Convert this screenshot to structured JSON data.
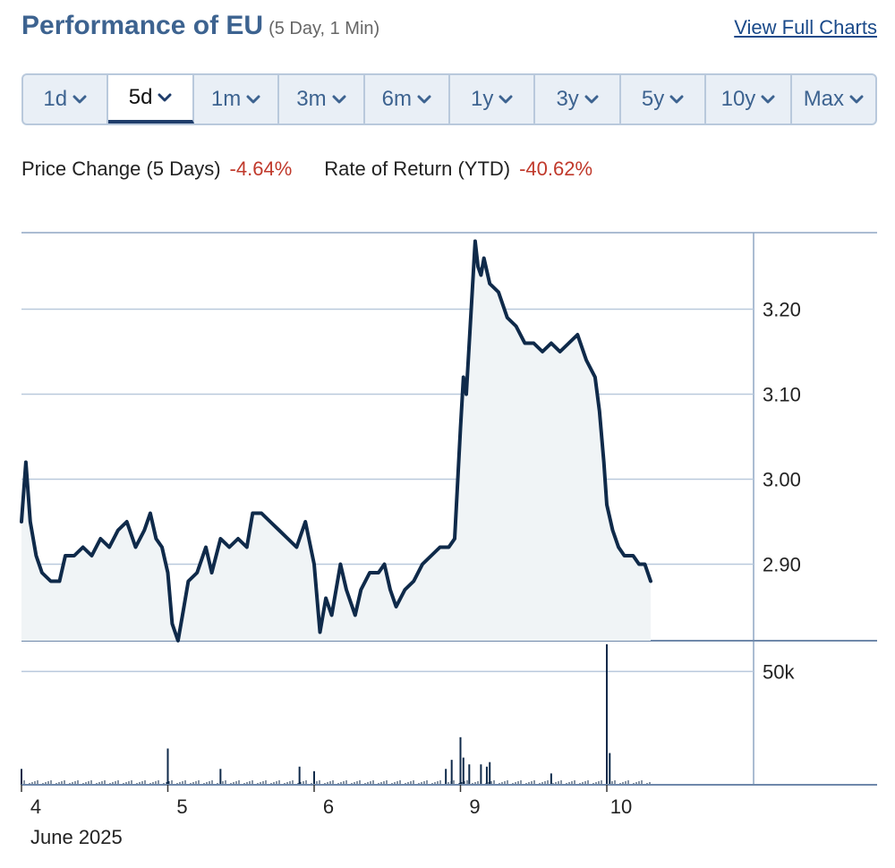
{
  "header": {
    "title": "Performance of EU",
    "subtitle": "(5 Day, 1 Min)",
    "view_full_label": "View Full Charts"
  },
  "tabs": [
    {
      "label": "1d",
      "active": false
    },
    {
      "label": "5d",
      "active": true
    },
    {
      "label": "1m",
      "active": false
    },
    {
      "label": "3m",
      "active": false
    },
    {
      "label": "6m",
      "active": false
    },
    {
      "label": "1y",
      "active": false
    },
    {
      "label": "3y",
      "active": false
    },
    {
      "label": "5y",
      "active": false
    },
    {
      "label": "10y",
      "active": false
    },
    {
      "label": "Max",
      "active": false
    }
  ],
  "stats": {
    "price_change_label": "Price Change (5 Days)",
    "price_change_value": "-4.64%",
    "ror_label": "Rate of Return (YTD)",
    "ror_value": "-40.62%"
  },
  "colors": {
    "accent": "#3d6390",
    "line": "#0f2a4a",
    "area_fill": "#f0f4f6",
    "negative": "#c0392b",
    "grid": "#b9c9dc"
  },
  "chart_data": {
    "type": "area",
    "title": "",
    "xlabel": "June 2025",
    "ylabel": "",
    "price": {
      "ylim": [
        2.81,
        3.29
      ],
      "yticks": [
        2.9,
        3.0,
        3.1,
        3.2
      ],
      "ytick_labels": [
        "2.90",
        "3.00",
        "3.10",
        "3.20"
      ],
      "x_sessions": [
        4,
        5,
        6,
        9,
        10
      ],
      "x_tick_labels": [
        "4",
        "5",
        "6",
        "9",
        "10"
      ],
      "points": [
        [
          0.0,
          2.95
        ],
        [
          0.03,
          3.02
        ],
        [
          0.06,
          2.95
        ],
        [
          0.1,
          2.91
        ],
        [
          0.14,
          2.89
        ],
        [
          0.2,
          2.88
        ],
        [
          0.26,
          2.88
        ],
        [
          0.3,
          2.91
        ],
        [
          0.36,
          2.91
        ],
        [
          0.42,
          2.92
        ],
        [
          0.48,
          2.91
        ],
        [
          0.54,
          2.93
        ],
        [
          0.6,
          2.92
        ],
        [
          0.66,
          2.94
        ],
        [
          0.72,
          2.95
        ],
        [
          0.78,
          2.92
        ],
        [
          0.84,
          2.94
        ],
        [
          0.88,
          2.96
        ],
        [
          0.92,
          2.93
        ],
        [
          0.96,
          2.92
        ],
        [
          1.0,
          2.89
        ],
        [
          1.03,
          2.83
        ],
        [
          1.07,
          2.81
        ],
        [
          1.1,
          2.84
        ],
        [
          1.14,
          2.88
        ],
        [
          1.2,
          2.89
        ],
        [
          1.26,
          2.92
        ],
        [
          1.3,
          2.89
        ],
        [
          1.36,
          2.93
        ],
        [
          1.42,
          2.92
        ],
        [
          1.48,
          2.93
        ],
        [
          1.54,
          2.92
        ],
        [
          1.58,
          2.96
        ],
        [
          1.64,
          2.96
        ],
        [
          1.7,
          2.95
        ],
        [
          1.76,
          2.94
        ],
        [
          1.82,
          2.93
        ],
        [
          1.88,
          2.92
        ],
        [
          1.94,
          2.95
        ],
        [
          2.0,
          2.9
        ],
        [
          2.04,
          2.82
        ],
        [
          2.08,
          2.86
        ],
        [
          2.12,
          2.84
        ],
        [
          2.18,
          2.9
        ],
        [
          2.22,
          2.87
        ],
        [
          2.28,
          2.84
        ],
        [
          2.32,
          2.87
        ],
        [
          2.38,
          2.89
        ],
        [
          2.44,
          2.89
        ],
        [
          2.48,
          2.9
        ],
        [
          2.52,
          2.87
        ],
        [
          2.56,
          2.85
        ],
        [
          2.62,
          2.87
        ],
        [
          2.68,
          2.88
        ],
        [
          2.74,
          2.9
        ],
        [
          2.8,
          2.91
        ],
        [
          2.86,
          2.92
        ],
        [
          2.92,
          2.92
        ],
        [
          2.96,
          2.93
        ],
        [
          3.0,
          3.06
        ],
        [
          3.02,
          3.12
        ],
        [
          3.04,
          3.1
        ],
        [
          3.06,
          3.16
        ],
        [
          3.08,
          3.22
        ],
        [
          3.1,
          3.28
        ],
        [
          3.12,
          3.25
        ],
        [
          3.14,
          3.24
        ],
        [
          3.16,
          3.26
        ],
        [
          3.2,
          3.23
        ],
        [
          3.26,
          3.22
        ],
        [
          3.32,
          3.19
        ],
        [
          3.38,
          3.18
        ],
        [
          3.44,
          3.16
        ],
        [
          3.5,
          3.16
        ],
        [
          3.56,
          3.15
        ],
        [
          3.62,
          3.16
        ],
        [
          3.68,
          3.15
        ],
        [
          3.74,
          3.16
        ],
        [
          3.8,
          3.17
        ],
        [
          3.86,
          3.14
        ],
        [
          3.92,
          3.12
        ],
        [
          3.95,
          3.08
        ],
        [
          3.98,
          3.02
        ],
        [
          4.0,
          2.97
        ],
        [
          4.04,
          2.94
        ],
        [
          4.08,
          2.92
        ],
        [
          4.12,
          2.91
        ],
        [
          4.18,
          2.91
        ],
        [
          4.22,
          2.9
        ],
        [
          4.26,
          2.9
        ],
        [
          4.3,
          2.88
        ]
      ]
    },
    "volume": {
      "ylim": [
        0,
        62000
      ],
      "yticks": [
        50000
      ],
      "ytick_labels": [
        "50k"
      ],
      "spikes": [
        [
          0.0,
          7000
        ],
        [
          1.0,
          16000
        ],
        [
          1.36,
          7000
        ],
        [
          1.9,
          8000
        ],
        [
          2.0,
          6000
        ],
        [
          2.9,
          7000
        ],
        [
          2.94,
          11000
        ],
        [
          3.0,
          21000
        ],
        [
          3.02,
          12000
        ],
        [
          3.06,
          9000
        ],
        [
          3.14,
          9000
        ],
        [
          3.18,
          8000
        ],
        [
          3.2,
          10000
        ],
        [
          3.62,
          5000
        ],
        [
          4.0,
          62000
        ],
        [
          4.02,
          14000
        ]
      ]
    }
  }
}
